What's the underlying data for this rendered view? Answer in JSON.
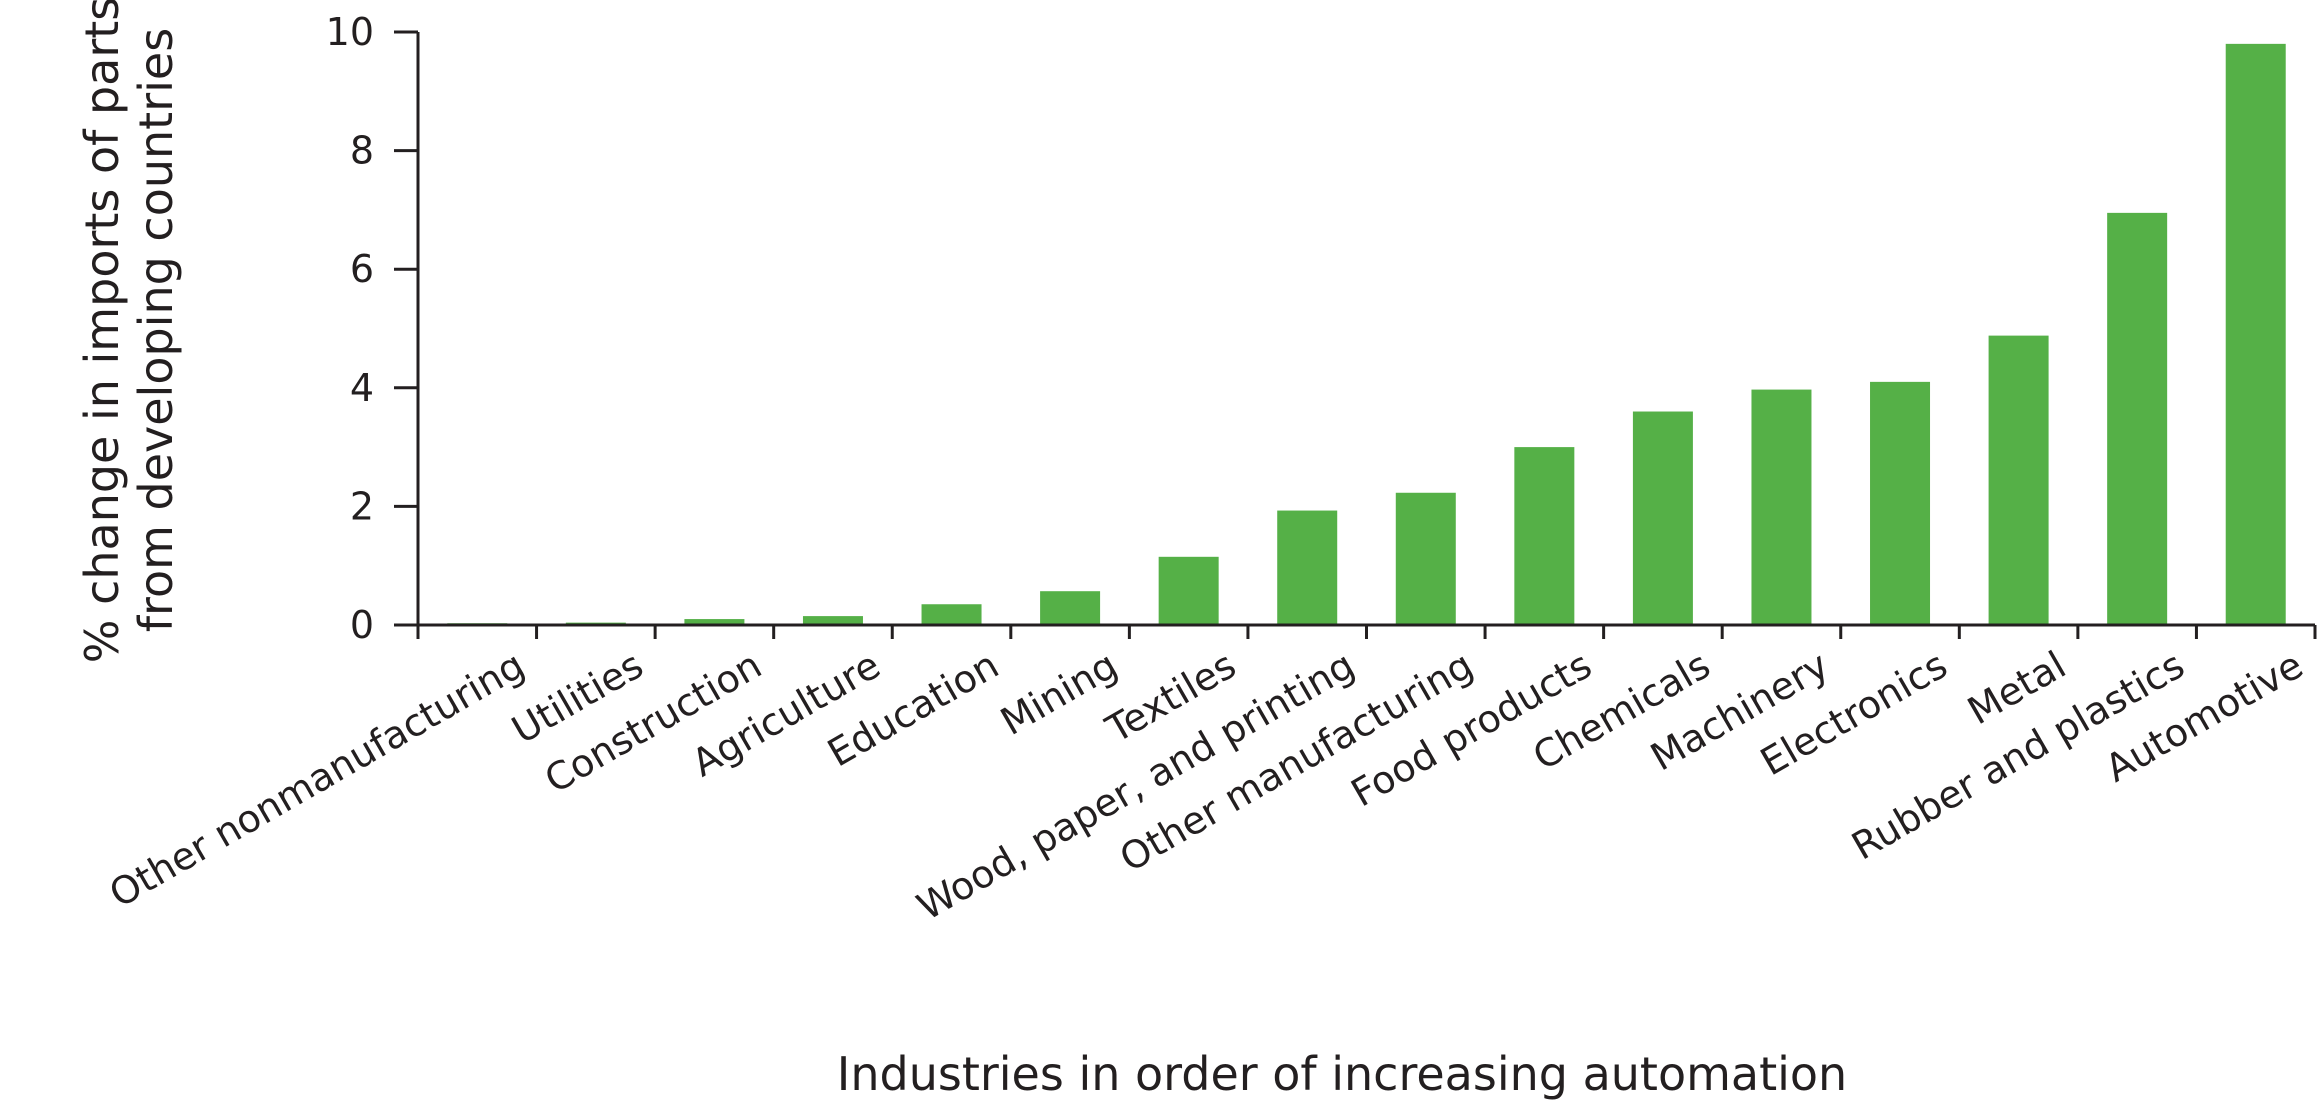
{
  "chart_data": {
    "type": "bar",
    "title": "",
    "xlabel": "Industries in order of increasing automation",
    "ylabel_lines": [
      "% change in imports of parts",
      "from developing countries"
    ],
    "ylim": [
      0,
      10
    ],
    "yticks": [
      0,
      2,
      4,
      6,
      8,
      10
    ],
    "grid": false,
    "bar_color": "#55b047",
    "axis_color": "#231f20",
    "categories": [
      "Other nonmanufacturing",
      "Utilities",
      "Construction",
      "Agriculture",
      "Education",
      "Mining",
      "Textiles",
      "Wood, paper, and printing",
      "Other manufacturing",
      "Food products",
      "Chemicals",
      "Machinery",
      "Electronics",
      "Metal",
      "Rubber and plastics",
      "Automotive"
    ],
    "values": [
      0.03,
      0.04,
      0.1,
      0.15,
      0.35,
      0.57,
      1.15,
      1.93,
      2.23,
      3.0,
      3.6,
      3.97,
      4.1,
      4.88,
      6.95,
      9.8
    ]
  }
}
